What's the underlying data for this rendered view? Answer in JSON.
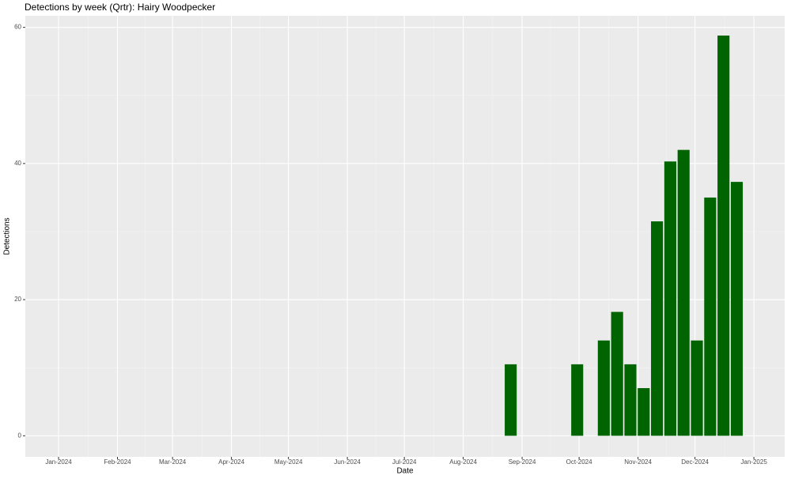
{
  "chart_data": {
    "type": "bar",
    "title": "Detections by week (Qrtr): Hairy Woodpecker",
    "x_label": "Date",
    "y_label": "Detections",
    "x": [
      238,
      273,
      287,
      294,
      301,
      308,
      315,
      322,
      329,
      336,
      343,
      350,
      357
    ],
    "values": [
      10.5,
      10.5,
      14,
      18.2,
      10.5,
      7,
      31.5,
      40.3,
      42,
      14,
      35,
      58.8,
      37.3
    ],
    "color": "#006400",
    "xlim": [
      -17.5,
      382.2
    ],
    "xticks": [
      {
        "value": 0,
        "label": "Jan-2024"
      },
      {
        "value": 31,
        "label": "Feb-2024"
      },
      {
        "value": 60,
        "label": "Mar-2024"
      },
      {
        "value": 91,
        "label": "Apr-2024"
      },
      {
        "value": 121,
        "label": "May-2024"
      },
      {
        "value": 152,
        "label": "Jun-2024"
      },
      {
        "value": 182,
        "label": "Jul-2024"
      },
      {
        "value": 213,
        "label": "Aug-2024"
      },
      {
        "value": 244,
        "label": "Sep-2024"
      },
      {
        "value": 274,
        "label": "Oct-2024"
      },
      {
        "value": 305,
        "label": "Nov-2024"
      },
      {
        "value": 335,
        "label": "Dec-2024"
      },
      {
        "value": 366,
        "label": "Jan-2025"
      }
    ],
    "ylim": [
      -3.1,
      61.7
    ],
    "yticks": [
      0,
      20,
      40,
      60
    ],
    "grid": true
  }
}
